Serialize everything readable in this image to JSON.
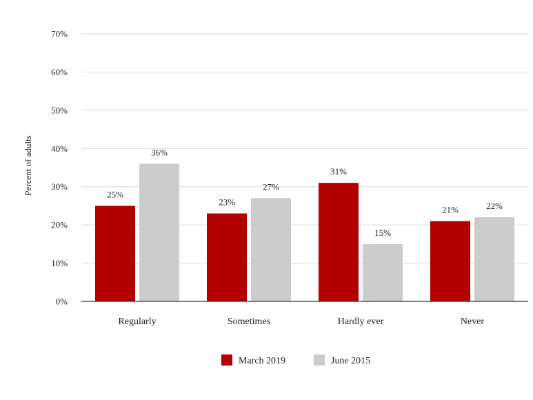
{
  "chart_data": {
    "type": "bar",
    "categories": [
      "Regularly",
      "Sometimes",
      "Hardly ever",
      "Never"
    ],
    "series": [
      {
        "name": "March 2019",
        "color": "#b30000",
        "values": [
          25,
          23,
          31,
          21
        ],
        "labels": [
          "25%",
          "23%",
          "31%",
          "21%"
        ]
      },
      {
        "name": "June 2015",
        "color": "#cccccc",
        "values": [
          36,
          27,
          15,
          22
        ],
        "labels": [
          "36%",
          "27%",
          "15%",
          "22%"
        ]
      }
    ],
    "ylabel": "Percent of adults",
    "ylim": [
      0,
      70
    ],
    "yticks": [
      {
        "value": 0,
        "label": "0%"
      },
      {
        "value": 10,
        "label": "10%"
      },
      {
        "value": 20,
        "label": "20%"
      },
      {
        "value": 30,
        "label": "30%"
      },
      {
        "value": 40,
        "label": "40%"
      },
      {
        "value": 50,
        "label": "50%"
      },
      {
        "value": 60,
        "label": "60%"
      },
      {
        "value": 70,
        "label": "70%"
      }
    ],
    "grid": true,
    "legend_position": "bottom"
  }
}
